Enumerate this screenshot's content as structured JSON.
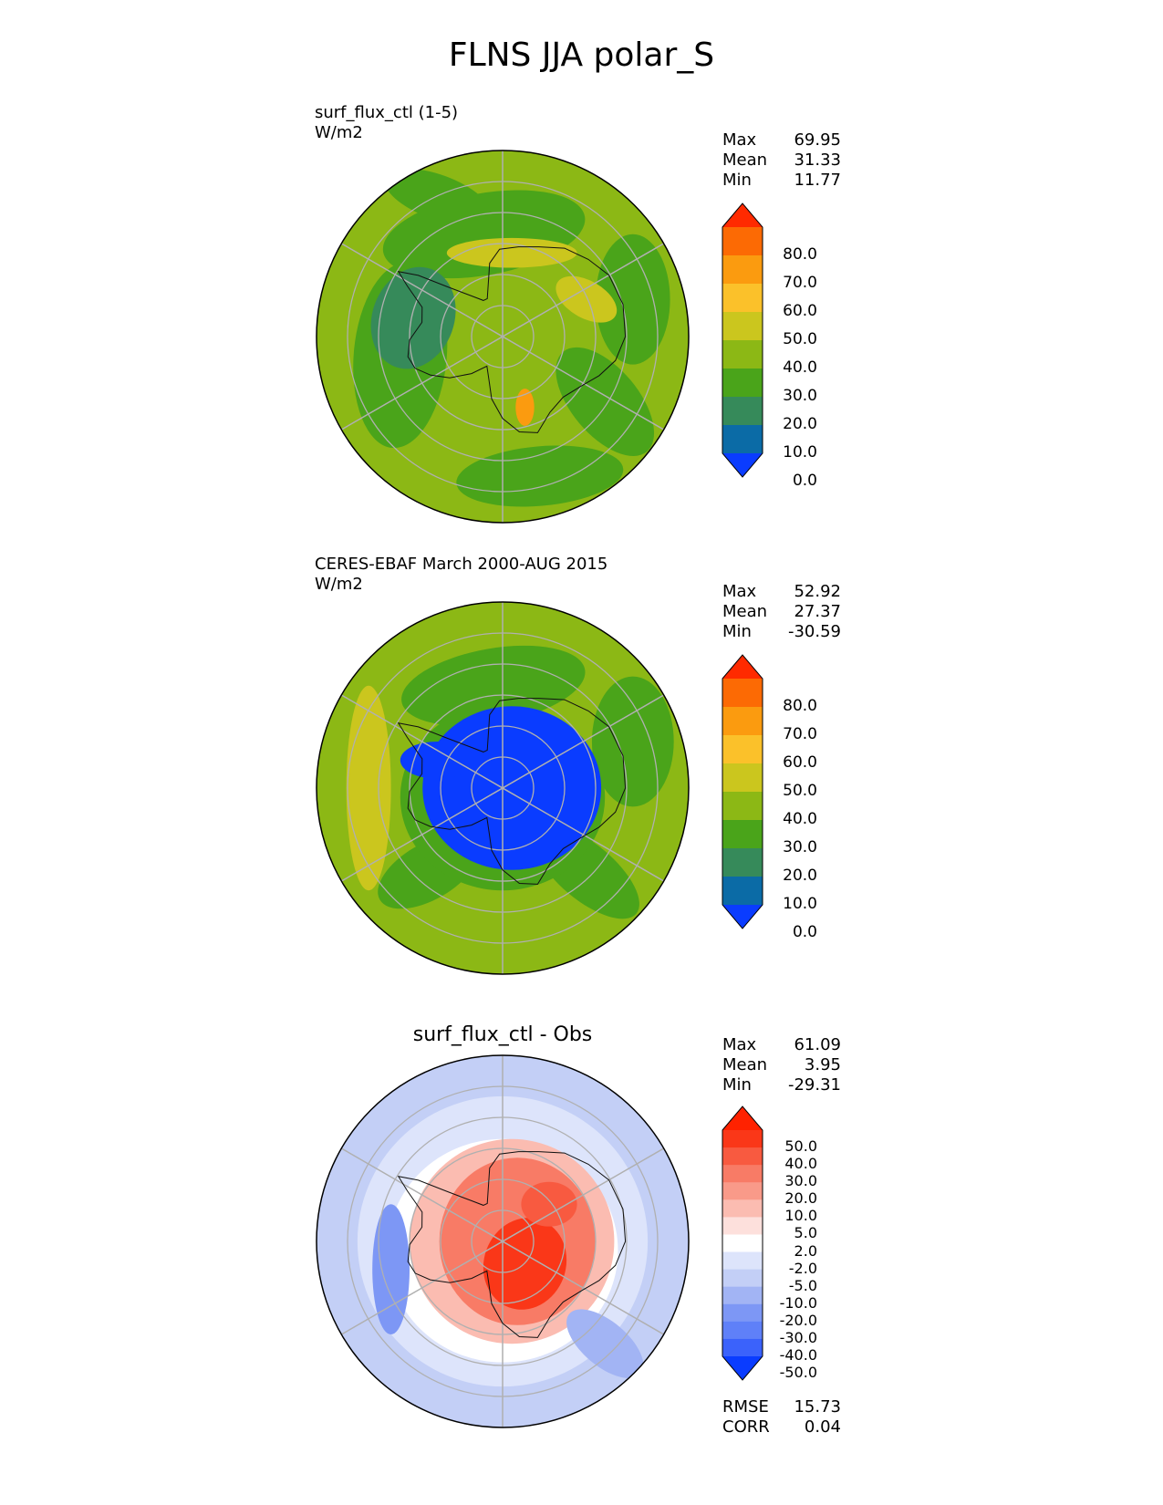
{
  "title": "FLNS JJA polar_S",
  "panels": [
    {
      "title_line1": "surf_flux_ctl (1-5)",
      "title_line2": "W/m2",
      "stats": {
        "max_label": "Max",
        "max": "69.95",
        "mean_label": "Mean",
        "mean": "31.33",
        "min_label": "Min",
        "min": "11.77"
      },
      "colorbar_labels": [
        "80.0",
        "70.0",
        "60.0",
        "50.0",
        "40.0",
        "30.0",
        "20.0",
        "10.0",
        "0.0"
      ]
    },
    {
      "title_line1": "CERES-EBAF March 2000-AUG 2015",
      "title_line2": "W/m2",
      "stats": {
        "max_label": "Max",
        "max": "52.92",
        "mean_label": "Mean",
        "mean": "27.37",
        "min_label": "Min",
        "min": "-30.59"
      },
      "colorbar_labels": [
        "80.0",
        "70.0",
        "60.0",
        "50.0",
        "40.0",
        "30.0",
        "20.0",
        "10.0",
        "0.0"
      ]
    },
    {
      "title": "surf_flux_ctl - Obs",
      "stats": {
        "max_label": "Max",
        "max": "61.09",
        "mean_label": "Mean",
        "mean": "3.95",
        "min_label": "Min",
        "min": "-29.31"
      },
      "colorbar_labels": [
        "50.0",
        "40.0",
        "30.0",
        "20.0",
        "10.0",
        "5.0",
        "2.0",
        "-2.0",
        "-5.0",
        "-10.0",
        "-20.0",
        "-30.0",
        "-40.0",
        "-50.0"
      ],
      "metrics": {
        "rmse_label": "RMSE",
        "rmse": "15.73",
        "corr_label": "CORR",
        "corr": "0.04"
      }
    }
  ],
  "chart_data": [
    {
      "type": "heatmap",
      "title": "surf_flux_ctl (1-5)",
      "units": "W/m2",
      "projection": "polar stereographic, south pole",
      "levels": [
        0,
        10,
        20,
        30,
        40,
        50,
        60,
        70,
        80
      ],
      "colors": [
        "#0a3cff",
        "#0b6ba6",
        "#368a5a",
        "#4aa41a",
        "#8cb815",
        "#cbc61e",
        "#fbc12a",
        "#fb9b0f",
        "#fc6a04",
        "#ff2a00"
      ],
      "max": 69.95,
      "mean": 31.33,
      "min": 11.77
    },
    {
      "type": "heatmap",
      "title": "CERES-EBAF March 2000-AUG 2015",
      "units": "W/m2",
      "projection": "polar stereographic, south pole",
      "levels": [
        0,
        10,
        20,
        30,
        40,
        50,
        60,
        70,
        80
      ],
      "colors": [
        "#0a3cff",
        "#0b6ba6",
        "#368a5a",
        "#4aa41a",
        "#8cb815",
        "#cbc61e",
        "#fbc12a",
        "#fb9b0f",
        "#fc6a04",
        "#ff2a00"
      ],
      "max": 52.92,
      "mean": 27.37,
      "min": -30.59
    },
    {
      "type": "heatmap",
      "title": "surf_flux_ctl - Obs",
      "projection": "polar stereographic, south pole",
      "levels": [
        -50,
        -40,
        -30,
        -20,
        -10,
        -5,
        -2,
        2,
        5,
        10,
        20,
        30,
        40,
        50
      ],
      "colors": [
        "#0a3cff",
        "#3b62fb",
        "#5f80f8",
        "#7d97f5",
        "#a2b4f4",
        "#c3cff6",
        "#dde4fb",
        "#ffffff",
        "#fde0dc",
        "#fbbcb1",
        "#f99a89",
        "#f87b66",
        "#f85a40",
        "#fa3718",
        "#ff2200"
      ],
      "max": 61.09,
      "mean": 3.95,
      "min": -29.31,
      "rmse": 15.73,
      "corr": 0.04
    }
  ]
}
